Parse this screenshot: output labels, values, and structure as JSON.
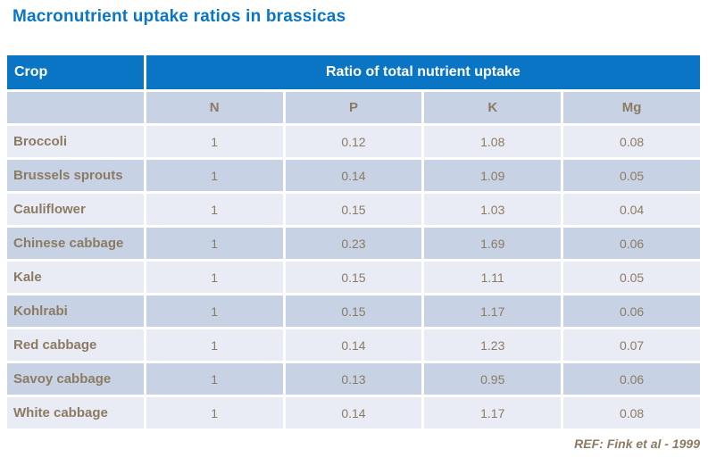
{
  "title": "Macronutrient uptake ratios in brassicas",
  "reference": "REF: Fink et al - 1999",
  "colors": {
    "header_blue": "#0a75c4",
    "title_blue": "#0a75c4",
    "row_light": "#e9ecf4",
    "row_dark": "#c7d2e4",
    "text_brown": "#8c7b63"
  },
  "table": {
    "crop_header": "Crop",
    "group_header": "Ratio of total nutrient uptake",
    "columns": [
      "N",
      "P",
      "K",
      "Mg"
    ],
    "rows": [
      {
        "crop": "Broccoli",
        "values": [
          "1",
          "0.12",
          "1.08",
          "0.08"
        ]
      },
      {
        "crop": "Brussels sprouts",
        "values": [
          "1",
          "0.14",
          "1.09",
          "0.05"
        ]
      },
      {
        "crop": "Cauliflower",
        "values": [
          "1",
          "0.15",
          "1.03",
          "0.04"
        ]
      },
      {
        "crop": "Chinese cabbage",
        "values": [
          "1",
          "0.23",
          "1.69",
          "0.06"
        ]
      },
      {
        "crop": "Kale",
        "values": [
          "1",
          "0.15",
          "1.11",
          "0.05"
        ]
      },
      {
        "crop": "Kohlrabi",
        "values": [
          "1",
          "0.15",
          "1.17",
          "0.06"
        ]
      },
      {
        "crop": "Red cabbage",
        "values": [
          "1",
          "0.14",
          "1.23",
          "0.07"
        ]
      },
      {
        "crop": "Savoy cabbage",
        "values": [
          "1",
          "0.13",
          "0.95",
          "0.06"
        ]
      },
      {
        "crop": "White cabbage",
        "values": [
          "1",
          "0.14",
          "1.17",
          "0.08"
        ]
      }
    ]
  }
}
